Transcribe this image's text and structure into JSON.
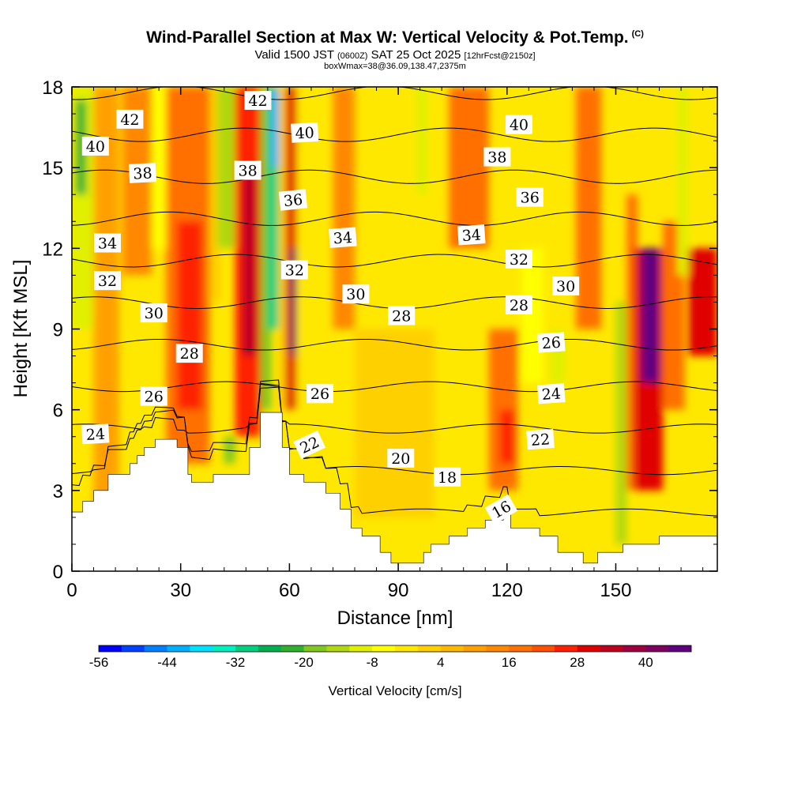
{
  "header": {
    "title": "Wind-Parallel Section at Max W: Vertical Velocity & Pot.Temp.",
    "copyright": "(C)",
    "valid_prefix": "Valid 1500 JST",
    "valid_utc": "(0600Z)",
    "valid_date": "SAT 25 Oct 2025",
    "forecast": "[12hrFcst@2150z]",
    "boxwmax": "boxWmax=38@36.09,138.47,2375m"
  },
  "chart_data": {
    "type": "heatmap",
    "title": "Wind-Parallel Section at Max W: Vertical Velocity & Pot.Temp.",
    "xlabel": "Distance [nm]",
    "ylabel": "Height [Kft MSL]",
    "xlim": [
      0,
      178
    ],
    "ylim": [
      0,
      18
    ],
    "xticks": [
      "0",
      "30",
      "60",
      "90",
      "120",
      "150"
    ],
    "xtick_values": [
      0,
      30,
      60,
      90,
      120,
      150
    ],
    "yticks": [
      "0",
      "3",
      "6",
      "9",
      "12",
      "15",
      "18"
    ],
    "ytick_values": [
      0,
      3,
      6,
      9,
      12,
      15,
      18
    ],
    "colorbar": {
      "label": "Vertical Velocity [cm/s]",
      "ticks": [
        "-56",
        "-44",
        "-32",
        "-20",
        "-8",
        "4",
        "16",
        "28",
        "40"
      ],
      "tick_values": [
        -56,
        -44,
        -32,
        -20,
        -8,
        4,
        16,
        28,
        40
      ],
      "colors": [
        "#0000ff",
        "#0040ff",
        "#0080ff",
        "#00b0ff",
        "#00e0ff",
        "#00f0c0",
        "#00d080",
        "#00b050",
        "#30b030",
        "#80c820",
        "#b0d810",
        "#e0f000",
        "#ffff00",
        "#ffe800",
        "#ffd000",
        "#ffb800",
        "#ffa000",
        "#ff8800",
        "#ff7000",
        "#ff5000",
        "#ff2000",
        "#e00000",
        "#c00020",
        "#a00040",
        "#800060",
        "#600080"
      ]
    },
    "velocity_cells": [
      {
        "x0": 0,
        "x1": 6,
        "y0": 9,
        "y1": 18,
        "w": -12
      },
      {
        "x0": 1,
        "x1": 4,
        "y0": 14,
        "y1": 17.5,
        "w": -22
      },
      {
        "x0": 6,
        "x1": 13,
        "y0": 0,
        "y1": 18,
        "w": 8
      },
      {
        "x0": 14,
        "x1": 22,
        "y0": 11,
        "y1": 18,
        "w": 14
      },
      {
        "x0": 22,
        "x1": 28,
        "y0": 12,
        "y1": 18,
        "w": -6
      },
      {
        "x0": 26,
        "x1": 38,
        "y0": 4,
        "y1": 18,
        "w": 18
      },
      {
        "x0": 29,
        "x1": 36,
        "y0": 6,
        "y1": 13,
        "w": 26
      },
      {
        "x0": 38,
        "x1": 41,
        "y0": 10,
        "y1": 18,
        "w": 0
      },
      {
        "x0": 40,
        "x1": 45,
        "y0": 12,
        "y1": 18,
        "w": -16
      },
      {
        "x0": 42,
        "x1": 45,
        "y0": 4,
        "y1": 5,
        "w": -18
      },
      {
        "x0": 45,
        "x1": 52,
        "y0": 5,
        "y1": 18,
        "w": 24
      },
      {
        "x0": 47,
        "x1": 51,
        "y0": 8,
        "y1": 15,
        "w": 34
      },
      {
        "x0": 52,
        "x1": 55,
        "y0": 6,
        "y1": 18,
        "w": -18
      },
      {
        "x0": 54,
        "x1": 57,
        "y0": 9,
        "y1": 18,
        "w": -32
      },
      {
        "x0": 55,
        "x1": 57,
        "y0": 15,
        "y1": 18,
        "w": -44
      },
      {
        "x0": 57,
        "x1": 60,
        "y0": 6,
        "y1": 18,
        "w": 4
      },
      {
        "x0": 59,
        "x1": 62,
        "y0": 6,
        "y1": 18,
        "w": 30
      },
      {
        "x0": 60,
        "x1": 62,
        "y0": 8,
        "y1": 12,
        "w": 40
      },
      {
        "x0": 62,
        "x1": 66,
        "y0": 3,
        "y1": 18,
        "w": -4
      },
      {
        "x0": 72,
        "x1": 78,
        "y0": 9,
        "y1": 18,
        "w": 12
      },
      {
        "x0": 78,
        "x1": 100,
        "y0": 2,
        "y1": 9,
        "w": 2
      },
      {
        "x0": 95,
        "x1": 98,
        "y0": 14,
        "y1": 18,
        "w": -10
      },
      {
        "x0": 104,
        "x1": 115,
        "y0": 12,
        "y1": 18,
        "w": 16
      },
      {
        "x0": 115,
        "x1": 123,
        "y0": 3,
        "y1": 9,
        "w": 18
      },
      {
        "x0": 118,
        "x1": 122,
        "y0": 4,
        "y1": 6,
        "w": 24
      },
      {
        "x0": 124,
        "x1": 130,
        "y0": 7,
        "y1": 12,
        "w": -6
      },
      {
        "x0": 132,
        "x1": 136,
        "y0": 7,
        "y1": 9,
        "w": -10
      },
      {
        "x0": 139,
        "x1": 146,
        "y0": 9,
        "y1": 18,
        "w": 16
      },
      {
        "x0": 150,
        "x1": 153,
        "y0": 1,
        "y1": 10,
        "w": -16
      },
      {
        "x0": 153,
        "x1": 156,
        "y0": 3,
        "y1": 14,
        "w": 16
      },
      {
        "x0": 155,
        "x1": 163,
        "y0": 3,
        "y1": 12,
        "w": 28
      },
      {
        "x0": 157,
        "x1": 162,
        "y0": 7,
        "y1": 12,
        "w": 44
      },
      {
        "x0": 163,
        "x1": 169,
        "y0": 6,
        "y1": 13,
        "w": 16
      },
      {
        "x0": 167,
        "x1": 170,
        "y0": 11,
        "y1": 18,
        "w": -10
      },
      {
        "x0": 170,
        "x1": 178,
        "y0": 8,
        "y1": 12,
        "w": 28
      }
    ],
    "terrain": [
      [
        0,
        2.2
      ],
      [
        3,
        2.2
      ],
      [
        3,
        2.6
      ],
      [
        6,
        2.6
      ],
      [
        6,
        3.0
      ],
      [
        10,
        3.0
      ],
      [
        10,
        3.6
      ],
      [
        16,
        3.6
      ],
      [
        16,
        4.0
      ],
      [
        18,
        4.0
      ],
      [
        18,
        4.3
      ],
      [
        20,
        4.3
      ],
      [
        20,
        4.6
      ],
      [
        23,
        4.6
      ],
      [
        23,
        4.9
      ],
      [
        29,
        4.9
      ],
      [
        29,
        4.6
      ],
      [
        32,
        4.6
      ],
      [
        32,
        3.6
      ],
      [
        33,
        3.6
      ],
      [
        33,
        3.3
      ],
      [
        39,
        3.3
      ],
      [
        39,
        3.6
      ],
      [
        49,
        3.6
      ],
      [
        49,
        4.6
      ],
      [
        52,
        4.6
      ],
      [
        52,
        5.9
      ],
      [
        58,
        5.9
      ],
      [
        58,
        4.6
      ],
      [
        60,
        4.6
      ],
      [
        60,
        3.6
      ],
      [
        64,
        3.6
      ],
      [
        64,
        3.3
      ],
      [
        70,
        3.3
      ],
      [
        70,
        2.9
      ],
      [
        74,
        2.9
      ],
      [
        74,
        2.3
      ],
      [
        77,
        2.3
      ],
      [
        77,
        1.6
      ],
      [
        80,
        1.6
      ],
      [
        80,
        1.3
      ],
      [
        85,
        1.3
      ],
      [
        85,
        0.7
      ],
      [
        88,
        0.7
      ],
      [
        88,
        0.3
      ],
      [
        97,
        0.3
      ],
      [
        97,
        0.7
      ],
      [
        99,
        0.7
      ],
      [
        99,
        1.0
      ],
      [
        104,
        1.0
      ],
      [
        104,
        1.3
      ],
      [
        109,
        1.3
      ],
      [
        109,
        1.6
      ],
      [
        114,
        1.6
      ],
      [
        114,
        1.9
      ],
      [
        119,
        1.9
      ],
      [
        119,
        2.2
      ],
      [
        121,
        2.2
      ],
      [
        121,
        1.6
      ],
      [
        129,
        1.6
      ],
      [
        129,
        1.3
      ],
      [
        134,
        1.3
      ],
      [
        134,
        0.7
      ],
      [
        141,
        0.7
      ],
      [
        141,
        0.3
      ],
      [
        145,
        0.3
      ],
      [
        145,
        0.7
      ],
      [
        152,
        0.7
      ],
      [
        152,
        1.0
      ],
      [
        162,
        1.0
      ],
      [
        162,
        1.3
      ],
      [
        178,
        1.3
      ]
    ],
    "isentropes": [
      16,
      18,
      20,
      22,
      24,
      26,
      28,
      30,
      32,
      34,
      36,
      38,
      40,
      42
    ],
    "contour_labels": [
      {
        "text": "42",
        "x": 16,
        "y": 16.8,
        "rot": 0
      },
      {
        "text": "40",
        "x": 6.5,
        "y": 15.8,
        "rot": 0
      },
      {
        "text": "38",
        "x": 19.5,
        "y": 14.8,
        "rot": -3
      },
      {
        "text": "34",
        "x": 9.8,
        "y": 12.2,
        "rot": 0
      },
      {
        "text": "32",
        "x": 9.8,
        "y": 10.8,
        "rot": 0
      },
      {
        "text": "30",
        "x": 22.6,
        "y": 9.6,
        "rot": 0
      },
      {
        "text": "28",
        "x": 32.4,
        "y": 8.1,
        "rot": 0
      },
      {
        "text": "26",
        "x": 22.6,
        "y": 6.5,
        "rot": 0
      },
      {
        "text": "24",
        "x": 6.5,
        "y": 5.1,
        "rot": -3
      },
      {
        "text": "42",
        "x": 51.3,
        "y": 17.5,
        "rot": 0
      },
      {
        "text": "40",
        "x": 64.2,
        "y": 16.3,
        "rot": -3
      },
      {
        "text": "38",
        "x": 48.5,
        "y": 14.9,
        "rot": 0
      },
      {
        "text": "36",
        "x": 61,
        "y": 13.8,
        "rot": -6
      },
      {
        "text": "32",
        "x": 61.4,
        "y": 11.2,
        "rot": 0
      },
      {
        "text": "34",
        "x": 74.7,
        "y": 12.4,
        "rot": -4
      },
      {
        "text": "30",
        "x": 78.3,
        "y": 10.3,
        "rot": 0
      },
      {
        "text": "28",
        "x": 90.9,
        "y": 9.5,
        "rot": 0
      },
      {
        "text": "26",
        "x": 68.4,
        "y": 6.6,
        "rot": 0
      },
      {
        "text": "22",
        "x": 65.5,
        "y": 4.7,
        "rot": -25
      },
      {
        "text": "20",
        "x": 90.7,
        "y": 4.2,
        "rot": 0
      },
      {
        "text": "18",
        "x": 103.5,
        "y": 3.5,
        "rot": 0
      },
      {
        "text": "16",
        "x": 118.4,
        "y": 2.3,
        "rot": -30
      },
      {
        "text": "40",
        "x": 123.3,
        "y": 16.6,
        "rot": 0
      },
      {
        "text": "38",
        "x": 117.3,
        "y": 15.4,
        "rot": 0
      },
      {
        "text": "36",
        "x": 126.3,
        "y": 13.9,
        "rot": 0
      },
      {
        "text": "34",
        "x": 110.2,
        "y": 12.5,
        "rot": -4
      },
      {
        "text": "32",
        "x": 123.3,
        "y": 11.6,
        "rot": 0
      },
      {
        "text": "30",
        "x": 136.2,
        "y": 10.6,
        "rot": 0
      },
      {
        "text": "28",
        "x": 123.3,
        "y": 9.9,
        "rot": 0
      },
      {
        "text": "26",
        "x": 132.2,
        "y": 8.5,
        "rot": -4
      },
      {
        "text": "24",
        "x": 132.2,
        "y": 6.6,
        "rot": -4
      },
      {
        "text": "22",
        "x": 129.2,
        "y": 4.9,
        "rot": -4
      }
    ]
  }
}
